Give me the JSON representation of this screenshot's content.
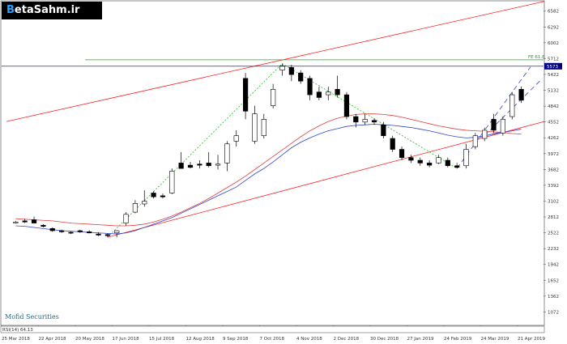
{
  "logo": {
    "prefix": "B",
    "text": "etaSahm.ir"
  },
  "watermark": "Mofid Securities",
  "rsi_label": "RSI(14) 64.13",
  "fe_label": "FE 61.8",
  "current_price": "5573",
  "colors": {
    "bull_body": "#ffffff",
    "bear_body": "#000000",
    "ma_fast": "#3344cc",
    "ma_slow": "#e04040",
    "channel": "#ff2020",
    "fe_line": "#22aa22",
    "price_line": "#000080",
    "zigzag": "#22bb22",
    "wick": "#000000"
  },
  "chart_data": {
    "type": "candlestick",
    "y_ticks": [
      "6582",
      "6292",
      "6002",
      "5712",
      "5422",
      "5132",
      "4842",
      "4552",
      "4262",
      "3972",
      "3682",
      "3392",
      "3102",
      "2812",
      "2522",
      "2232",
      "1942",
      "1652",
      "1362",
      "1072"
    ],
    "ylim": [
      826,
      6756
    ],
    "x_ticks": [
      "25 Mar 2018",
      "22 Apr 2018",
      "20 May 2018",
      "17 Jun 2018",
      "15 Jul 2018",
      "12 Aug 2018",
      "9 Sep 2018",
      "7 Oct 2018",
      "4 Nov 2018",
      "2 Dec 2018",
      "30 Dec 2018",
      "27 Jan 2019",
      "24 Feb 2019",
      "24 Mar 2019",
      "21 Apr 2019"
    ],
    "fe_level": 5690,
    "price_level": 5573,
    "candles": [
      {
        "i": 1,
        "o": 2700,
        "h": 2740,
        "l": 2690,
        "c": 2720
      },
      {
        "i": 2,
        "o": 2740,
        "h": 2780,
        "l": 2700,
        "c": 2720
      },
      {
        "i": 3,
        "o": 2760,
        "h": 2820,
        "l": 2710,
        "c": 2700
      },
      {
        "i": 4,
        "o": 2660,
        "h": 2680,
        "l": 2620,
        "c": 2640
      },
      {
        "i": 5,
        "o": 2600,
        "h": 2620,
        "l": 2540,
        "c": 2560
      },
      {
        "i": 6,
        "o": 2560,
        "h": 2580,
        "l": 2520,
        "c": 2540
      },
      {
        "i": 7,
        "o": 2530,
        "h": 2550,
        "l": 2500,
        "c": 2520
      },
      {
        "i": 8,
        "o": 2560,
        "h": 2580,
        "l": 2520,
        "c": 2540
      },
      {
        "i": 9,
        "o": 2540,
        "h": 2570,
        "l": 2510,
        "c": 2520
      },
      {
        "i": 10,
        "o": 2500,
        "h": 2530,
        "l": 2460,
        "c": 2480
      },
      {
        "i": 11,
        "o": 2490,
        "h": 2510,
        "l": 2440,
        "c": 2470
      },
      {
        "i": 12,
        "o": 2520,
        "h": 2570,
        "l": 2440,
        "c": 2560
      },
      {
        "i": 13,
        "o": 2700,
        "h": 2900,
        "l": 2650,
        "c": 2860
      },
      {
        "i": 14,
        "o": 2900,
        "h": 3120,
        "l": 2880,
        "c": 3060
      },
      {
        "i": 15,
        "o": 3050,
        "h": 3300,
        "l": 3000,
        "c": 3100
      },
      {
        "i": 16,
        "o": 3250,
        "h": 3280,
        "l": 3150,
        "c": 3180
      },
      {
        "i": 17,
        "o": 3200,
        "h": 3240,
        "l": 3150,
        "c": 3180
      },
      {
        "i": 18,
        "o": 3250,
        "h": 3700,
        "l": 3230,
        "c": 3650
      },
      {
        "i": 19,
        "o": 3800,
        "h": 4000,
        "l": 3700,
        "c": 3700
      },
      {
        "i": 20,
        "o": 3760,
        "h": 3820,
        "l": 3700,
        "c": 3720
      },
      {
        "i": 21,
        "o": 3780,
        "h": 3850,
        "l": 3700,
        "c": 3760
      },
      {
        "i": 22,
        "o": 3800,
        "h": 4000,
        "l": 3720,
        "c": 3750
      },
      {
        "i": 23,
        "o": 3760,
        "h": 3950,
        "l": 3680,
        "c": 3780
      },
      {
        "i": 24,
        "o": 3800,
        "h": 4200,
        "l": 3650,
        "c": 4150
      },
      {
        "i": 25,
        "o": 4200,
        "h": 4400,
        "l": 4100,
        "c": 4300
      },
      {
        "i": 26,
        "o": 5350,
        "h": 5450,
        "l": 4600,
        "c": 4750
      },
      {
        "i": 27,
        "o": 4200,
        "h": 4850,
        "l": 4150,
        "c": 4700
      },
      {
        "i": 28,
        "o": 4300,
        "h": 4700,
        "l": 4250,
        "c": 4600
      },
      {
        "i": 29,
        "o": 4850,
        "h": 5250,
        "l": 4800,
        "c": 5150
      },
      {
        "i": 30,
        "o": 5500,
        "h": 5620,
        "l": 5400,
        "c": 5580
      },
      {
        "i": 31,
        "o": 5550,
        "h": 5600,
        "l": 5300,
        "c": 5420
      },
      {
        "i": 32,
        "o": 5450,
        "h": 5500,
        "l": 5250,
        "c": 5300
      },
      {
        "i": 33,
        "o": 5350,
        "h": 5400,
        "l": 4950,
        "c": 5050
      },
      {
        "i": 34,
        "o": 5100,
        "h": 5200,
        "l": 4950,
        "c": 5000
      },
      {
        "i": 35,
        "o": 5050,
        "h": 5200,
        "l": 4950,
        "c": 5100
      },
      {
        "i": 36,
        "o": 5150,
        "h": 5400,
        "l": 5000,
        "c": 5050
      },
      {
        "i": 37,
        "o": 5050,
        "h": 5100,
        "l": 4600,
        "c": 4650
      },
      {
        "i": 38,
        "o": 4650,
        "h": 4700,
        "l": 4450,
        "c": 4550
      },
      {
        "i": 39,
        "o": 4550,
        "h": 4700,
        "l": 4500,
        "c": 4600
      },
      {
        "i": 40,
        "o": 4580,
        "h": 4620,
        "l": 4500,
        "c": 4550
      },
      {
        "i": 41,
        "o": 4500,
        "h": 4550,
        "l": 4250,
        "c": 4300
      },
      {
        "i": 42,
        "o": 4250,
        "h": 4300,
        "l": 4000,
        "c": 4050
      },
      {
        "i": 43,
        "o": 4050,
        "h": 4100,
        "l": 3850,
        "c": 3900
      },
      {
        "i": 44,
        "o": 3900,
        "h": 3950,
        "l": 3800,
        "c": 3850
      },
      {
        "i": 45,
        "o": 3850,
        "h": 3900,
        "l": 3750,
        "c": 3800
      },
      {
        "i": 46,
        "o": 3800,
        "h": 3850,
        "l": 3720,
        "c": 3760
      },
      {
        "i": 47,
        "o": 3800,
        "h": 3950,
        "l": 3780,
        "c": 3900
      },
      {
        "i": 48,
        "o": 3850,
        "h": 3900,
        "l": 3720,
        "c": 3750
      },
      {
        "i": 49,
        "o": 3750,
        "h": 3800,
        "l": 3700,
        "c": 3720
      },
      {
        "i": 50,
        "o": 3750,
        "h": 4150,
        "l": 3700,
        "c": 4050
      },
      {
        "i": 51,
        "o": 4100,
        "h": 4350,
        "l": 4050,
        "c": 4300
      },
      {
        "i": 52,
        "o": 4250,
        "h": 4450,
        "l": 4200,
        "c": 4400
      },
      {
        "i": 53,
        "o": 4600,
        "h": 4700,
        "l": 4350,
        "c": 4400
      },
      {
        "i": 54,
        "o": 4350,
        "h": 4650,
        "l": 4300,
        "c": 4600
      },
      {
        "i": 55,
        "o": 4650,
        "h": 5100,
        "l": 4600,
        "c": 5050
      },
      {
        "i": 56,
        "o": 5150,
        "h": 5200,
        "l": 4900,
        "c": 4950
      }
    ],
    "ma_fast": [
      2650,
      2640,
      2620,
      2600,
      2580,
      2560,
      2550,
      2540,
      2530,
      2520,
      2510,
      2500,
      2520,
      2560,
      2620,
      2680,
      2740,
      2800,
      2880,
      2960,
      3040,
      3120,
      3200,
      3280,
      3360,
      3480,
      3600,
      3700,
      3820,
      3950,
      4080,
      4180,
      4260,
      4330,
      4390,
      4430,
      4470,
      4490,
      4500,
      4510,
      4500,
      4490,
      4470,
      4450,
      4420,
      4390,
      4350,
      4310,
      4280,
      4260,
      4270,
      4300,
      4330,
      4360,
      4390,
      4420
    ],
    "ma_slow": [
      2780,
      2770,
      2760,
      2750,
      2740,
      2720,
      2700,
      2690,
      2680,
      2670,
      2660,
      2650,
      2650,
      2660,
      2680,
      2720,
      2770,
      2830,
      2900,
      2980,
      3060,
      3150,
      3250,
      3350,
      3450,
      3560,
      3680,
      3800,
      3920,
      4040,
      4160,
      4280,
      4390,
      4480,
      4560,
      4620,
      4660,
      4690,
      4700,
      4700,
      4690,
      4670,
      4640,
      4600,
      4560,
      4520,
      4480,
      4450,
      4420,
      4400,
      4390,
      4380,
      4370,
      4360,
      4340,
      4330
    ],
    "channel_upper": [
      {
        "i": 0,
        "v": 4560
      },
      {
        "i": 58.5,
        "v": 6760
      }
    ],
    "channel_lower": [
      {
        "i": 11,
        "v": 2440
      },
      {
        "i": 58.5,
        "v": 4560
      }
    ],
    "zigzag": [
      {
        "i": 11,
        "v": 2440
      },
      {
        "i": 30,
        "v": 5620
      },
      {
        "i": 49,
        "v": 3700
      }
    ],
    "trend_up": [
      {
        "i": 49,
        "v": 3700
      },
      {
        "i": 57,
        "v": 5560
      }
    ],
    "trend_up2": [
      {
        "i": 52,
        "v": 4300
      },
      {
        "i": 58,
        "v": 5300
      }
    ],
    "trend_up3": [
      {
        "i": 51,
        "v": 4250
      },
      {
        "i": 54,
        "v": 4380
      }
    ]
  }
}
